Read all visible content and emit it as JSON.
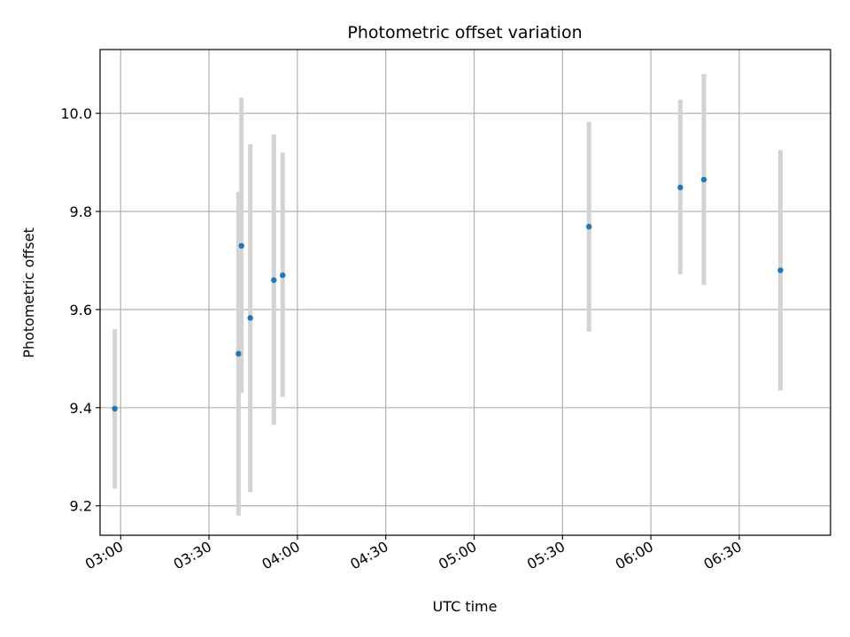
{
  "chart_data": {
    "type": "scatter",
    "title": "Photometric offset variation",
    "xlabel": "UTC time",
    "ylabel": "Photometric offset",
    "x_axis": "time",
    "xlim": [
      "02:53",
      "07:01"
    ],
    "ylim": [
      9.14,
      10.13
    ],
    "xticks": [
      "03:00",
      "03:30",
      "04:00",
      "04:30",
      "05:00",
      "05:30",
      "06:00",
      "06:30"
    ],
    "yticks": [
      9.2,
      9.4,
      9.6,
      9.8,
      10.0
    ],
    "ytick_labels": [
      "9.2",
      "9.4",
      "9.6",
      "9.8",
      "10.0"
    ],
    "grid": true,
    "point_color": "#1f77b4",
    "errorbar_color": "#d3d3d3",
    "points": [
      {
        "t": "02:58",
        "y": 9.398,
        "err_low": 9.235,
        "err_high": 9.56
      },
      {
        "t": "03:40",
        "y": 9.51,
        "err_low": 9.18,
        "err_high": 9.84
      },
      {
        "t": "03:41",
        "y": 9.73,
        "err_low": 9.43,
        "err_high": 10.032
      },
      {
        "t": "03:44",
        "y": 9.583,
        "err_low": 9.228,
        "err_high": 9.937
      },
      {
        "t": "03:52",
        "y": 9.66,
        "err_low": 9.365,
        "err_high": 9.957
      },
      {
        "t": "03:55",
        "y": 9.67,
        "err_low": 9.422,
        "err_high": 9.92
      },
      {
        "t": "05:39",
        "y": 9.769,
        "err_low": 9.555,
        "err_high": 9.983
      },
      {
        "t": "06:10",
        "y": 9.849,
        "err_low": 9.672,
        "err_high": 10.028
      },
      {
        "t": "06:18",
        "y": 9.865,
        "err_low": 9.65,
        "err_high": 10.08
      },
      {
        "t": "06:44",
        "y": 9.68,
        "err_low": 9.435,
        "err_high": 9.925
      }
    ]
  }
}
